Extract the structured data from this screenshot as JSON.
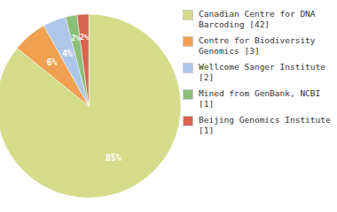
{
  "chart_data": {
    "type": "pie",
    "categories": [
      "Canadian Centre for DNA\nBarcoding [42]",
      "Centre for Biodiversity\nGenomics [3]",
      "Wellcome Sanger Institute [2]",
      "Mined from GenBank, NCBI [1]",
      "Beijing Genomics Institute [1]"
    ],
    "values": [
      85,
      6,
      4,
      2,
      2
    ],
    "value_labels": [
      "85%",
      "6%",
      "4%",
      "2%",
      "2%"
    ],
    "data_labels": true,
    "colors": [
      "#d4dc8a",
      "#f0a050",
      "#aec6e8",
      "#8bbf7a",
      "#d9634e"
    ],
    "legend": "right"
  }
}
